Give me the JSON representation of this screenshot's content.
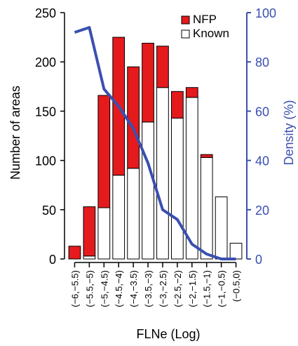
{
  "chart_data": {
    "type": "bar",
    "stacked": true,
    "categories": [
      "(−6,−5.5)",
      "(−5.5,−5)",
      "(−5,−4.5)",
      "(−4.5,−4)",
      "(−4,−3.5)",
      "(−3.5,−3)",
      "(−3,−2.5)",
      "(−2.5,−2)",
      "(−2,−1.5)",
      "(−1.5,−1)",
      "(−1,−0.5)",
      "(−0.5,0)"
    ],
    "series": [
      {
        "name": "Known",
        "values": [
          0,
          3,
          52,
          85,
          92,
          139,
          174,
          143,
          164,
          103,
          63,
          16
        ]
      },
      {
        "name": "NFP",
        "values": [
          13,
          50,
          114,
          140,
          103,
          80,
          42,
          27,
          10,
          3,
          0,
          0
        ]
      }
    ],
    "density": {
      "name": "Density (%)",
      "values": [
        92,
        94,
        69,
        62,
        53,
        39,
        20,
        16,
        6,
        2,
        0,
        0
      ]
    },
    "xlabel": "FLNe (Log)",
    "ylabel": "Number of areas",
    "y2label": "Density (%)",
    "ylim": [
      0,
      250
    ],
    "y2lim": [
      0,
      100
    ],
    "yticks": [
      0,
      50,
      100,
      150,
      200,
      250
    ],
    "y2ticks": [
      0,
      20,
      40,
      60,
      80,
      100
    ],
    "legend": "top-right",
    "grid": false,
    "colors": {
      "NFP": "#e41a1c",
      "Known": "#ffffff",
      "density": "#3a4fb0",
      "axis": "#000000"
    }
  }
}
